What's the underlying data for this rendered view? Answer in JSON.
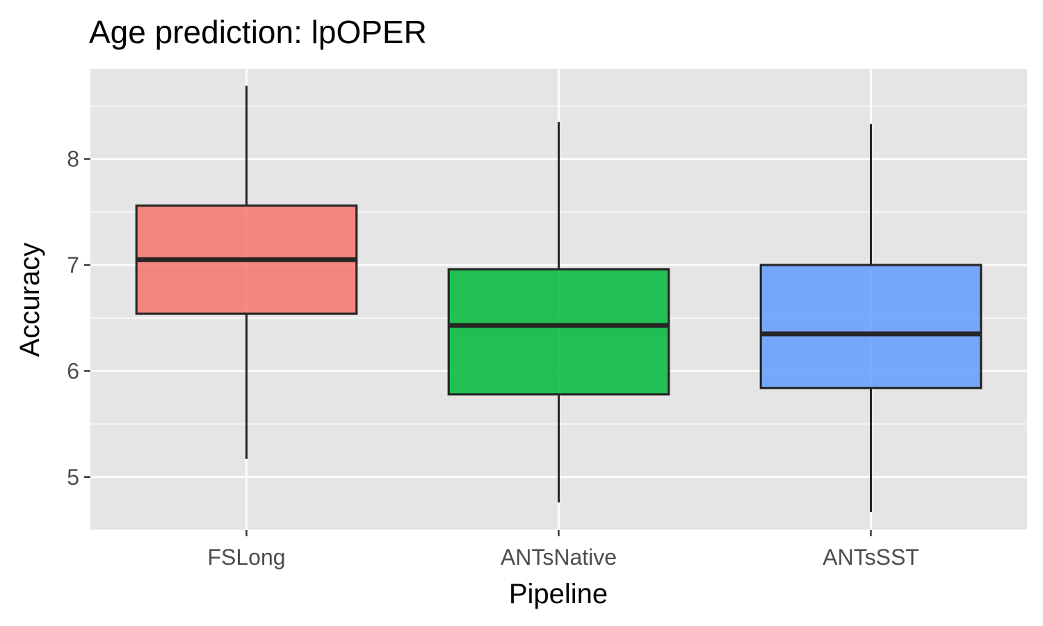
{
  "chart_data": {
    "type": "box",
    "title": "Age prediction: lpOPER",
    "xlabel": "Pipeline",
    "ylabel": "Accuracy",
    "ylim": [
      4.5,
      8.85
    ],
    "yticks": [
      5,
      6,
      7,
      8
    ],
    "yticklabels": [
      "5",
      "6",
      "7",
      "8"
    ],
    "grid": true,
    "legend": "none",
    "categories": [
      "FSLong",
      "ANTsNative",
      "ANTsSST"
    ],
    "boxes": [
      {
        "category": "FSLong",
        "whisker_low": 5.17,
        "q1": 6.54,
        "median": 7.05,
        "q3": 7.56,
        "whisker_high": 8.69,
        "color": "#F8766D"
      },
      {
        "category": "ANTsNative",
        "whisker_low": 4.76,
        "q1": 5.78,
        "median": 6.43,
        "q3": 6.96,
        "whisker_high": 8.35,
        "color": "#00BA38"
      },
      {
        "category": "ANTsSST",
        "whisker_low": 4.67,
        "q1": 5.84,
        "median": 6.35,
        "q3": 7.0,
        "whisker_high": 8.33,
        "color": "#619CFF"
      }
    ],
    "colors": {
      "panel_background": "#E5E5E5",
      "grid_line": "#FFFFFF",
      "box_outline": "#262626"
    }
  }
}
